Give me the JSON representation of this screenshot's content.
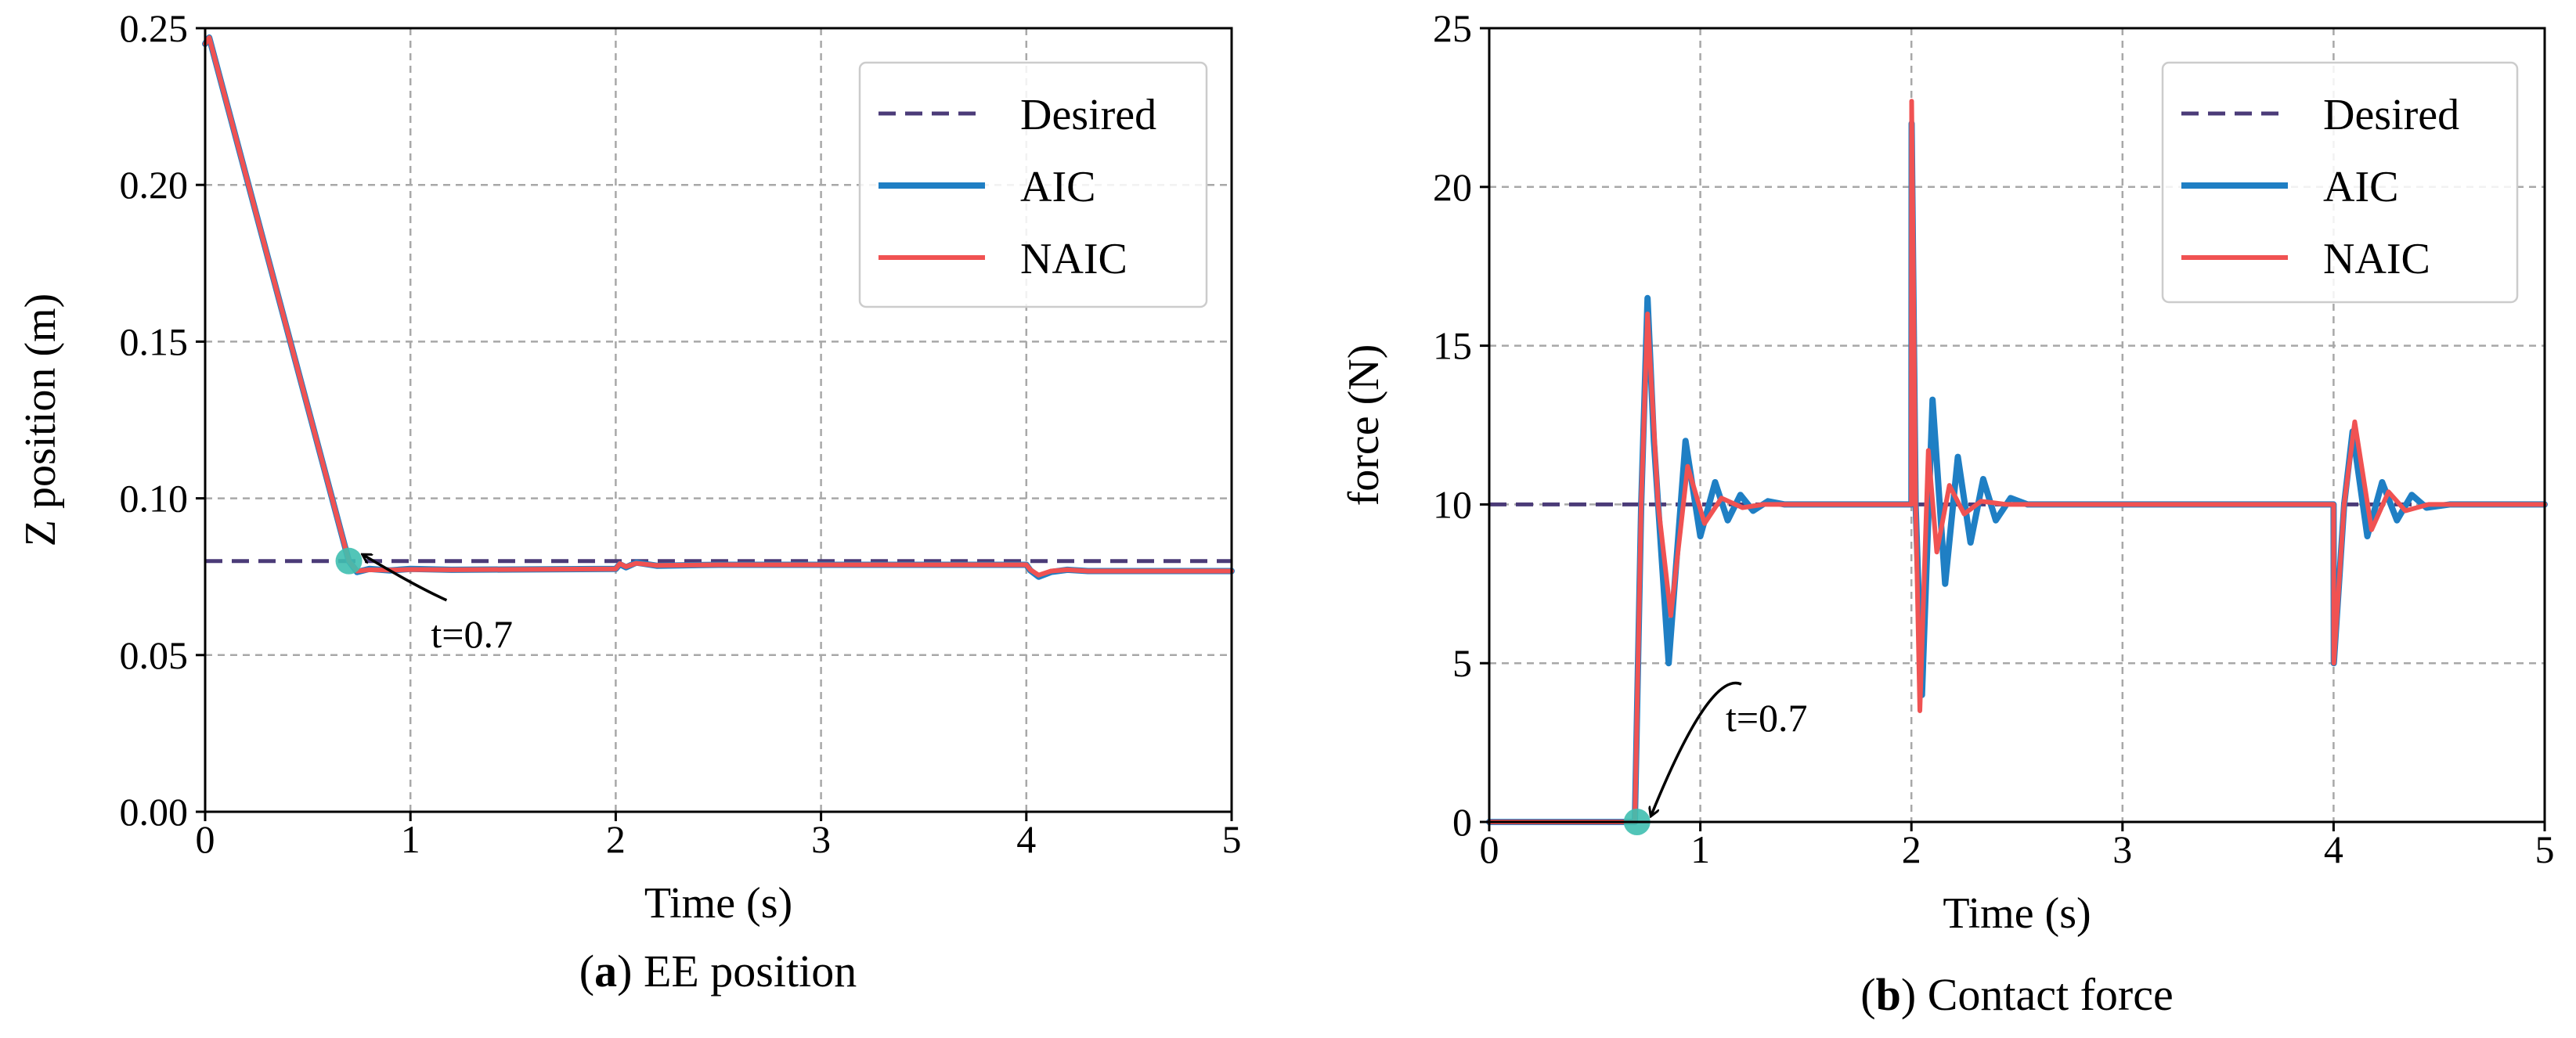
{
  "colors": {
    "desired": "#4b3b78",
    "aic": "#1f7fc4",
    "naic": "#f05252",
    "marker": "#3fbfb0",
    "grid": "#a8a8a8"
  },
  "chart_data": [
    {
      "type": "line",
      "panel": "a",
      "caption_letter": "a",
      "caption_text": "EE position",
      "xlabel": "Time (s)",
      "ylabel": "Z position (m)",
      "xlim": [
        0,
        5
      ],
      "ylim": [
        0,
        0.25
      ],
      "xticks": [
        0,
        1,
        2,
        3,
        4,
        5
      ],
      "xtick_labels": [
        "0",
        "1",
        "2",
        "3",
        "4",
        "5"
      ],
      "yticks": [
        0,
        0.05,
        0.1,
        0.15,
        0.2,
        0.25
      ],
      "ytick_labels": [
        "0.00",
        "0.05",
        "0.10",
        "0.15",
        "0.20",
        "0.25"
      ],
      "grid": true,
      "legend_position": "top-right",
      "legend": [
        "Desired",
        "AIC",
        "NAIC"
      ],
      "series": [
        {
          "name": "Desired",
          "style": "dashed",
          "color_key": "desired",
          "x": [
            0,
            5
          ],
          "y": [
            0.08,
            0.08
          ]
        },
        {
          "name": "AIC",
          "style": "solid",
          "color_key": "aic",
          "x": [
            0,
            0.02,
            0.7,
            0.74,
            0.8,
            0.9,
            1.0,
            1.2,
            2.0,
            2.02,
            2.05,
            2.1,
            2.2,
            2.5,
            4.0,
            4.02,
            4.06,
            4.12,
            4.2,
            4.3,
            5.0
          ],
          "y": [
            0.245,
            0.247,
            0.08,
            0.0765,
            0.0775,
            0.077,
            0.0775,
            0.0772,
            0.0775,
            0.079,
            0.078,
            0.0795,
            0.0785,
            0.0788,
            0.0788,
            0.077,
            0.075,
            0.0765,
            0.0772,
            0.0768,
            0.0768
          ]
        },
        {
          "name": "NAIC",
          "style": "solid",
          "color_key": "naic",
          "x": [
            0,
            0.02,
            0.7,
            0.74,
            0.8,
            0.9,
            1.0,
            1.2,
            2.0,
            2.02,
            2.05,
            2.1,
            2.2,
            2.5,
            4.0,
            4.02,
            4.06,
            4.12,
            4.2,
            4.3,
            5.0
          ],
          "y": [
            0.245,
            0.247,
            0.08,
            0.0768,
            0.0772,
            0.0771,
            0.0773,
            0.0772,
            0.0775,
            0.0792,
            0.0782,
            0.0793,
            0.0786,
            0.0788,
            0.0788,
            0.0772,
            0.0755,
            0.0768,
            0.0772,
            0.0768,
            0.0768
          ]
        }
      ],
      "annotation": {
        "text": "t=0.7",
        "x": 0.7,
        "y": 0.08,
        "text_x": 1.1,
        "text_y": 0.057
      }
    },
    {
      "type": "line",
      "panel": "b",
      "caption_letter": "b",
      "caption_text": "Contact force",
      "xlabel": "Time (s)",
      "ylabel": "force (N)",
      "xlim": [
        0,
        5
      ],
      "ylim": [
        0,
        25
      ],
      "xticks": [
        0,
        1,
        2,
        3,
        4,
        5
      ],
      "xtick_labels": [
        "0",
        "1",
        "2",
        "3",
        "4",
        "5"
      ],
      "yticks": [
        0,
        5,
        10,
        15,
        20,
        25
      ],
      "ytick_labels": [
        "0",
        "5",
        "10",
        "15",
        "20",
        "25"
      ],
      "grid": true,
      "legend_position": "top-right",
      "legend": [
        "Desired",
        "AIC",
        "NAIC"
      ],
      "series": [
        {
          "name": "Desired",
          "style": "dashed",
          "color_key": "desired",
          "x": [
            0,
            5
          ],
          "y": [
            10,
            10
          ]
        },
        {
          "name": "AIC",
          "style": "solid",
          "color_key": "aic",
          "x": [
            0,
            0.69,
            0.72,
            0.75,
            0.78,
            0.85,
            0.93,
            1.0,
            1.07,
            1.13,
            1.19,
            1.25,
            1.32,
            1.4,
            2.0,
            2.001,
            2.02,
            2.05,
            2.1,
            2.16,
            2.22,
            2.28,
            2.34,
            2.4,
            2.47,
            2.55,
            4.0,
            4.001,
            4.05,
            4.09,
            4.16,
            4.23,
            4.3,
            4.37,
            4.44,
            4.55,
            5.0
          ],
          "y": [
            0,
            0,
            10,
            16.5,
            12,
            5,
            12,
            9,
            10.7,
            9.5,
            10.3,
            9.8,
            10.1,
            10,
            10,
            22,
            10,
            4,
            13.3,
            7.5,
            11.5,
            8.8,
            10.8,
            9.5,
            10.2,
            10,
            10,
            5,
            10,
            12.3,
            9,
            10.7,
            9.5,
            10.3,
            9.9,
            10,
            10
          ]
        },
        {
          "name": "NAIC",
          "style": "solid",
          "color_key": "naic",
          "x": [
            0,
            0.69,
            0.72,
            0.75,
            0.8,
            0.86,
            0.94,
            1.02,
            1.1,
            1.2,
            1.3,
            2.0,
            2.001,
            2.02,
            2.04,
            2.08,
            2.12,
            2.18,
            2.25,
            2.33,
            2.45,
            4.0,
            4.001,
            4.05,
            4.1,
            4.18,
            4.26,
            4.34,
            4.45,
            5.0
          ],
          "y": [
            0,
            0,
            10,
            16,
            10,
            6.5,
            11.2,
            9.4,
            10.2,
            9.9,
            10,
            10,
            22.7,
            10,
            3.5,
            11.7,
            8.5,
            10.6,
            9.7,
            10.1,
            10,
            10,
            5,
            10,
            12.6,
            9.2,
            10.4,
            9.8,
            10,
            10
          ]
        }
      ],
      "annotation": {
        "text": "t=0.7",
        "x": 0.7,
        "y": 0,
        "text_x": 1.12,
        "text_y": 3.3
      }
    }
  ]
}
